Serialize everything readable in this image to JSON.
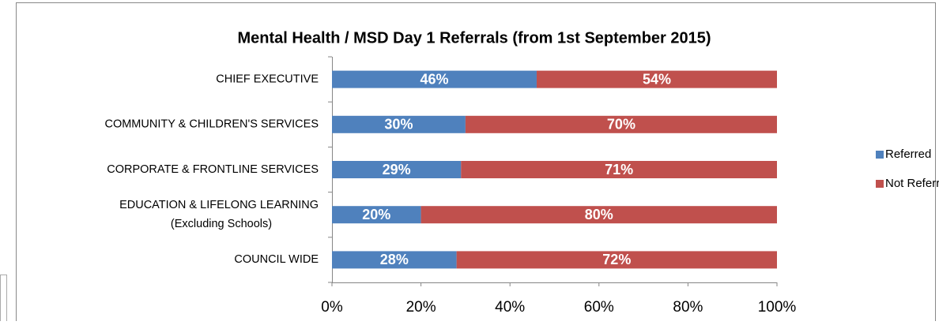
{
  "chart_data": {
    "type": "stacked-bar",
    "orientation": "horizontal",
    "title": "Mental Health / MSD Day 1 Referrals (from 1st September 2015)",
    "categories": [
      "CHIEF EXECUTIVE",
      "COMMUNITY & CHILDREN'S SERVICES",
      "CORPORATE & FRONTLINE SERVICES",
      "EDUCATION & LIFELONG LEARNING\n(Excluding Schools)",
      "COUNCIL WIDE"
    ],
    "series": [
      {
        "name": "Referred",
        "color": "#4f81bd",
        "values": [
          46,
          30,
          29,
          20,
          28
        ],
        "value_labels": [
          "46%",
          "30%",
          "29%",
          "20%",
          "28%"
        ]
      },
      {
        "name": "Not Referred",
        "color": "#c0504d",
        "values": [
          54,
          70,
          71,
          80,
          72
        ],
        "value_labels": [
          "54%",
          "70%",
          "71%",
          "80%",
          "72%"
        ]
      }
    ],
    "xlim": [
      0,
      100
    ],
    "xticks": [
      {
        "value": 0,
        "label": "0%"
      },
      {
        "value": 20,
        "label": "20%"
      },
      {
        "value": 40,
        "label": "40%"
      },
      {
        "value": 60,
        "label": "60%"
      },
      {
        "value": 80,
        "label": "80%"
      },
      {
        "value": 100,
        "label": "100%"
      }
    ],
    "legend": "right"
  }
}
